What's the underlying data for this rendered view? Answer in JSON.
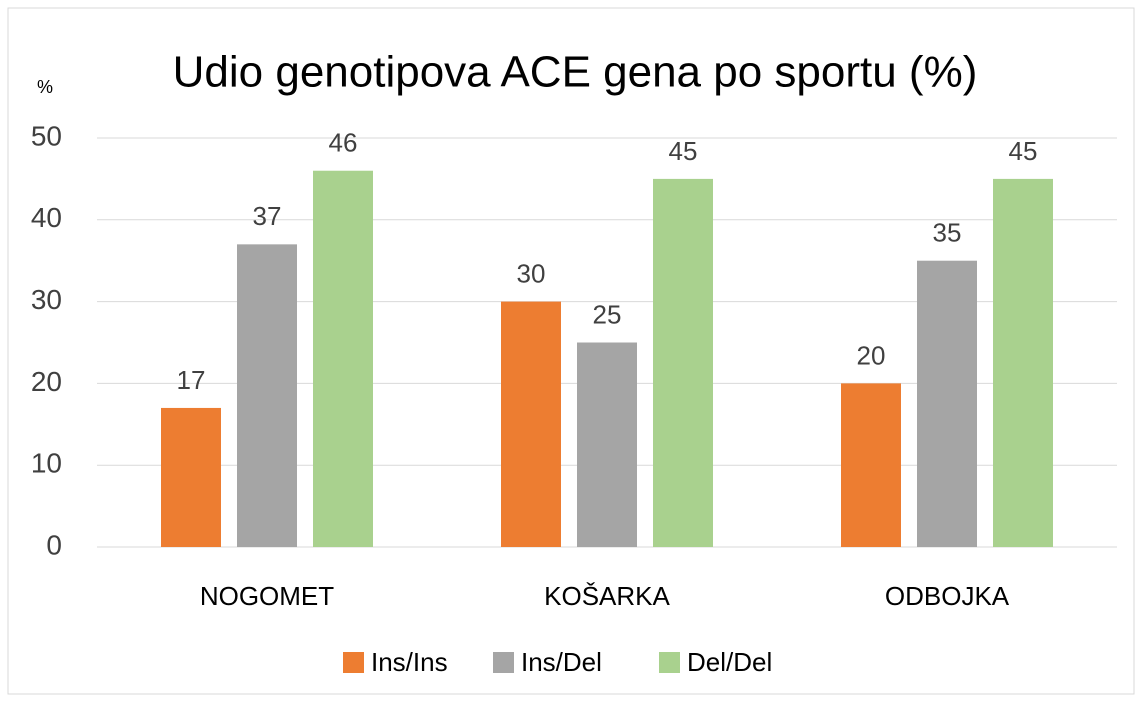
{
  "chart_data": {
    "type": "bar",
    "title": "Udio genotipova ACE gena po sportu (%)",
    "y_label": "%",
    "categories": [
      "NOGOMET",
      "KOŠARKA",
      "ODBOJKA"
    ],
    "series": [
      {
        "name": "Ins/Ins",
        "color": "#ed7d31",
        "values": [
          17,
          30,
          20
        ]
      },
      {
        "name": "Ins/Del",
        "color": "#a5a5a5",
        "values": [
          37,
          25,
          35
        ]
      },
      {
        "name": "Del/Del",
        "color": "#a9d18e",
        "values": [
          46,
          45,
          45
        ]
      }
    ],
    "ylim": [
      0,
      50
    ],
    "yticks": [
      0,
      10,
      20,
      30,
      40,
      50
    ],
    "grid": true,
    "legend": "bottom"
  }
}
